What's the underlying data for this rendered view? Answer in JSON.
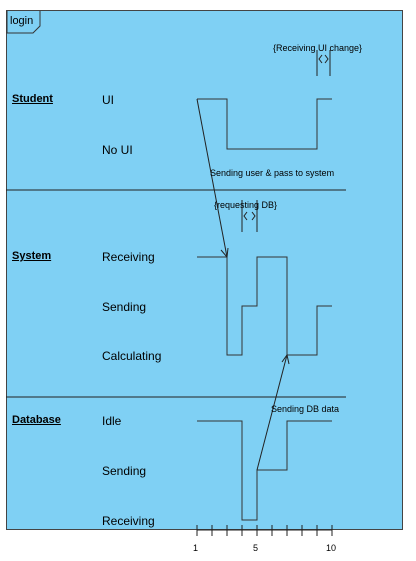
{
  "frame": {
    "label": "login"
  },
  "lifelines": [
    {
      "name": "Student",
      "states": [
        "UI",
        "No UI"
      ]
    },
    {
      "name": "System",
      "states": [
        "Receiving",
        "Sending",
        "Calculating"
      ]
    },
    {
      "name": "Database",
      "states": [
        "Idle",
        "Sending",
        "Receiving"
      ]
    }
  ],
  "constraints": {
    "receiving_ui": "{Receiving UI change}",
    "requesting_db": "{requesting DB}"
  },
  "messages": {
    "user_pass": "Sending user & pass to system",
    "db_data": "Sending DB data"
  },
  "axis": {
    "tick_labels": [
      "1",
      "5",
      "10"
    ]
  }
}
